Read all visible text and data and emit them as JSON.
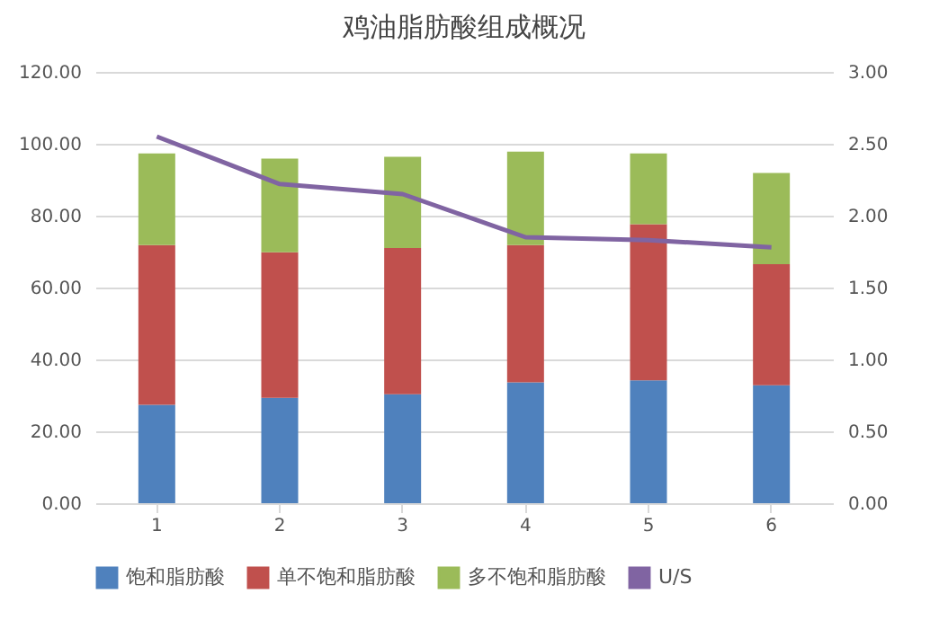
{
  "chart_data": {
    "type": "bar",
    "title": "鸡油脂肪酸组成概况",
    "stacked": true,
    "categories": [
      "1",
      "2",
      "3",
      "4",
      "5",
      "6"
    ],
    "series": [
      {
        "name": "饱和脂肪酸",
        "color": "#4f81bd",
        "values": [
          27.4,
          29.3,
          30.3,
          33.6,
          34.2,
          32.8
        ]
      },
      {
        "name": "单不饱和脂肪酸",
        "color": "#c0504d",
        "values": [
          44.4,
          40.5,
          40.7,
          38.2,
          43.4,
          33.7
        ]
      },
      {
        "name": "多不饱和脂肪酸",
        "color": "#9bbb59",
        "values": [
          25.5,
          26.1,
          25.4,
          26.0,
          19.7,
          25.4
        ]
      },
      {
        "name": "U/S",
        "type": "line",
        "axis": "y2",
        "color": "#8064a2",
        "values": [
          2.55,
          2.22,
          2.15,
          1.85,
          1.83,
          1.78
        ]
      }
    ],
    "ylim": [
      0,
      120
    ],
    "yticks": [
      {
        "value": 0,
        "label": "0.00"
      },
      {
        "value": 20,
        "label": "20.00"
      },
      {
        "value": 40,
        "label": "40.00"
      },
      {
        "value": 60,
        "label": "60.00"
      },
      {
        "value": 80,
        "label": "80.00"
      },
      {
        "value": 100,
        "label": "100.00"
      },
      {
        "value": 120,
        "label": "120.00"
      }
    ],
    "y2lim": [
      0,
      3
    ],
    "y2ticks": [
      {
        "value": 0,
        "label": "0.00"
      },
      {
        "value": 0.5,
        "label": "0.50"
      },
      {
        "value": 1,
        "label": "1.00"
      },
      {
        "value": 1.5,
        "label": "1.50"
      },
      {
        "value": 2,
        "label": "2.00"
      },
      {
        "value": 2.5,
        "label": "2.50"
      },
      {
        "value": 3,
        "label": "3.00"
      }
    ],
    "grid": "y",
    "legend": "bottom",
    "marker": "none",
    "line_style": "solid"
  }
}
